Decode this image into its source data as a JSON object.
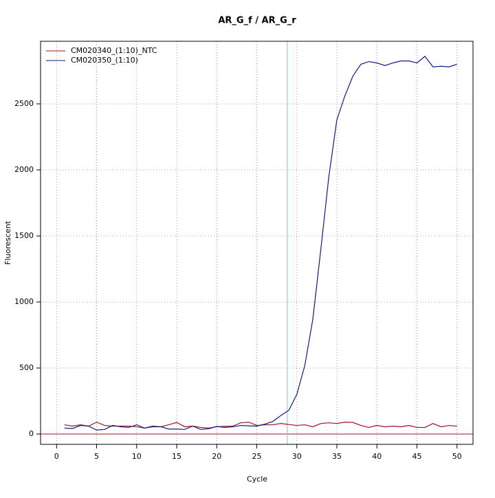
{
  "chart_data": {
    "type": "line",
    "title": "AR_G_f / AR_G_r",
    "xlabel": "Cycle",
    "ylabel": "Fluorescent",
    "x": [
      1,
      2,
      3,
      4,
      5,
      6,
      7,
      8,
      9,
      10,
      11,
      12,
      13,
      14,
      15,
      16,
      17,
      18,
      19,
      20,
      21,
      22,
      23,
      24,
      25,
      26,
      27,
      28,
      29,
      30,
      31,
      32,
      33,
      34,
      35,
      36,
      37,
      38,
      39,
      40,
      41,
      42,
      43,
      44,
      45,
      46,
      47,
      48,
      49,
      50
    ],
    "series": [
      {
        "name": "CM020340_(1:10)_NTC",
        "color": "#a01020",
        "values": [
          70,
          60,
          70,
          60,
          90,
          65,
          60,
          60,
          60,
          55,
          45,
          55,
          55,
          70,
          88,
          55,
          60,
          50,
          45,
          55,
          58,
          60,
          85,
          90,
          65,
          70,
          70,
          80,
          72,
          65,
          70,
          55,
          80,
          85,
          80,
          90,
          88,
          65,
          50,
          65,
          55,
          60,
          55,
          65,
          50,
          50,
          80,
          55,
          65,
          60
        ]
      },
      {
        "name": "CM020350_(1:10)",
        "color": "#101a80",
        "values": [
          45,
          42,
          65,
          60,
          30,
          35,
          65,
          55,
          50,
          70,
          45,
          60,
          55,
          38,
          38,
          35,
          60,
          35,
          40,
          58,
          50,
          55,
          65,
          62,
          60,
          75,
          95,
          140,
          180,
          300,
          520,
          870,
          1400,
          1950,
          2380,
          2560,
          2710,
          2800,
          2820,
          2810,
          2790,
          2810,
          2825,
          2825,
          2810,
          2860,
          2780,
          2785,
          2780,
          2800
        ]
      }
    ],
    "xlim": [
      -2,
      52
    ],
    "ylim": [
      -78,
      2974
    ],
    "xticks": [
      0,
      5,
      10,
      15,
      20,
      25,
      30,
      35,
      40,
      45,
      50
    ],
    "yticks": [
      0,
      500,
      1000,
      1500,
      2000,
      2500
    ],
    "grid": true,
    "legend": "top-left",
    "threshold_cycle": {
      "x": 28.8,
      "color": "#40e0e0"
    },
    "baseline": {
      "y": 0,
      "color": "#a01020"
    }
  }
}
